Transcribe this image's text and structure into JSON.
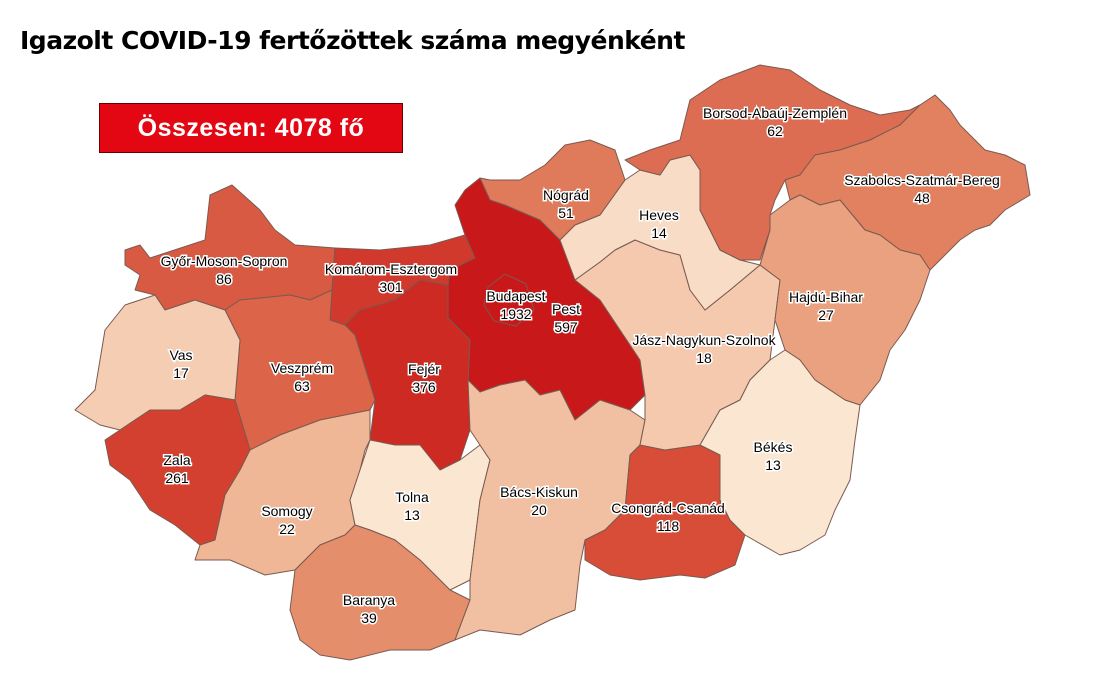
{
  "title": "Igazolt COVID-19 fertőzöttek száma megyénként",
  "total_label": "Összesen: 4078 fő",
  "counties": [
    {
      "name": "Győr-Moson-Sopron",
      "value": "86",
      "color": "#d95a42"
    },
    {
      "name": "Komárom-Esztergom",
      "value": "301",
      "color": "#d0392c"
    },
    {
      "name": "Pest",
      "value": "597",
      "color": "#c8181a"
    },
    {
      "name": "Budapest",
      "value": "1932",
      "color": "#c8181a"
    },
    {
      "name": "Fejér",
      "value": "376",
      "color": "#cc2a22"
    },
    {
      "name": "Veszprém",
      "value": "63",
      "color": "#dc6549"
    },
    {
      "name": "Vas",
      "value": "17",
      "color": "#f4cdb2"
    },
    {
      "name": "Zala",
      "value": "261",
      "color": "#d3402f"
    },
    {
      "name": "Somogy",
      "value": "22",
      "color": "#efb796"
    },
    {
      "name": "Tolna",
      "value": "13",
      "color": "#fbe6d2"
    },
    {
      "name": "Baranya",
      "value": "39",
      "color": "#e48e6c"
    },
    {
      "name": "Bács-Kiskun",
      "value": "20",
      "color": "#f1c0a2"
    },
    {
      "name": "Csongrád-Csanád",
      "value": "118",
      "color": "#d74d37"
    },
    {
      "name": "Jász-Nagykun-Szolnok",
      "value": "18",
      "color": "#f4c9ad"
    },
    {
      "name": "Heves",
      "value": "14",
      "color": "#f8dcc6"
    },
    {
      "name": "Nógrád",
      "value": "51",
      "color": "#df7a5a"
    },
    {
      "name": "Borsod-Abaúj-Zemplén",
      "value": "62",
      "color": "#dc6d52"
    },
    {
      "name": "Szabolcs-Szatmár-Bereg",
      "value": "48",
      "color": "#e2815f"
    },
    {
      "name": "Hajdú-Bihar",
      "value": "27",
      "color": "#eaa17f"
    },
    {
      "name": "Békés",
      "value": "13",
      "color": "#fbe6d2"
    }
  ]
}
